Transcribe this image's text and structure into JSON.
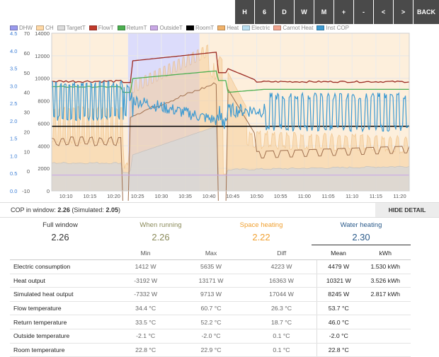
{
  "toolbar": {
    "buttons": [
      "H",
      "6",
      "D",
      "W",
      "M",
      "+",
      "-",
      "<",
      ">",
      "BACK"
    ]
  },
  "legend": [
    {
      "label": "DHW",
      "color": "#9a9aee"
    },
    {
      "label": "CH",
      "color": "#ffd9a6"
    },
    {
      "label": "TargetT",
      "color": "#dddddd"
    },
    {
      "label": "FlowT",
      "color": "#c0392b"
    },
    {
      "label": "ReturnT",
      "color": "#4caf50"
    },
    {
      "label": "OutsideT",
      "color": "#c9a8e6"
    },
    {
      "label": "RoomT",
      "color": "#000000"
    },
    {
      "label": "Heat",
      "color": "#f2b36b"
    },
    {
      "label": "Electric",
      "color": "#b9dff2"
    },
    {
      "label": "Carnot Heat",
      "color": "#f1a48f"
    },
    {
      "label": "Inst COP",
      "color": "#3d9ad1"
    }
  ],
  "chart_data": {
    "type": "line",
    "x_ticks": [
      "10:10",
      "10:15",
      "10:20",
      "10:25",
      "10:30",
      "10:35",
      "10:40",
      "10:45",
      "10:50",
      "10:55",
      "11:00",
      "11:05",
      "11:10",
      "11:15",
      "11:20"
    ],
    "y_axes": {
      "cop": {
        "ticks": [
          "0.0",
          "0.5",
          "1.0",
          "1.5",
          "2.0",
          "2.5",
          "3.0",
          "3.5",
          "4.0",
          "4.5"
        ],
        "color": "#3d7fd6"
      },
      "temp": {
        "ticks": [
          "-10",
          "0",
          "10",
          "20",
          "30",
          "40",
          "50",
          "60",
          "70"
        ],
        "color": "#555555"
      },
      "power": {
        "ticks": [
          "0",
          "2000",
          "4000",
          "6000",
          "8000",
          "10000",
          "12000",
          "14000"
        ],
        "color": "#555555"
      }
    },
    "dhw_highlight": {
      "x_start": "10:23",
      "x_end": "10:38",
      "color": "#dcdcfb"
    },
    "series": [
      {
        "name": "FlowT",
        "color": "#9b2a22"
      },
      {
        "name": "ReturnT",
        "color": "#4caf50"
      },
      {
        "name": "RoomT",
        "color": "#000000"
      },
      {
        "name": "OutsideT",
        "color": "#c9a8e6"
      },
      {
        "name": "Heat",
        "color": "#f2b36b"
      },
      {
        "name": "Electric",
        "color": "#b9dff2"
      },
      {
        "name": "Carnot Heat",
        "color": "#b07050"
      },
      {
        "name": "Inst COP",
        "color": "#3d9ad1"
      }
    ]
  },
  "cop_bar": {
    "prefix": "COP in window: ",
    "value": "2.26",
    "sim_prefix": " (Simulated: ",
    "sim_value": "2.05",
    "sim_suffix": ")",
    "hide_label": "HIDE DETAIL"
  },
  "tabs": [
    {
      "label": "Full window",
      "value": "2.26",
      "color": "#333333"
    },
    {
      "label": "When running",
      "value": "2.26",
      "color": "#8a8a5a"
    },
    {
      "label": "Space heating",
      "value": "2.22",
      "color": "#f0a030"
    },
    {
      "label": "Water heating",
      "value": "2.30",
      "color": "#2a5a8a"
    }
  ],
  "stats": {
    "headers": [
      "",
      "Min",
      "Max",
      "Diff",
      "Mean",
      "kWh"
    ],
    "rows": [
      [
        "Electric consumption",
        "1412 W",
        "5635 W",
        "4223 W",
        "4479 W",
        "1.530 kWh"
      ],
      [
        "Heat output",
        "-3192 W",
        "13171 W",
        "16363 W",
        "10321 W",
        "3.526 kWh"
      ],
      [
        "Simulated heat output",
        "-7332 W",
        "9713 W",
        "17044 W",
        "8245 W",
        "2.817 kWh"
      ],
      [
        "Flow temperature",
        "34.4 °C",
        "60.7 °C",
        "26.3 °C",
        "53.7 °C",
        ""
      ],
      [
        "Return temperature",
        "33.5 °C",
        "52.2 °C",
        "18.7 °C",
        "46.0 °C",
        ""
      ],
      [
        "Outside temperature",
        "-2.1 °C",
        "-2.0 °C",
        "0.1 °C",
        "-2.0 °C",
        ""
      ],
      [
        "Room temperature",
        "22.8 °C",
        "22.9 °C",
        "0.1 °C",
        "22.8 °C",
        ""
      ]
    ]
  }
}
